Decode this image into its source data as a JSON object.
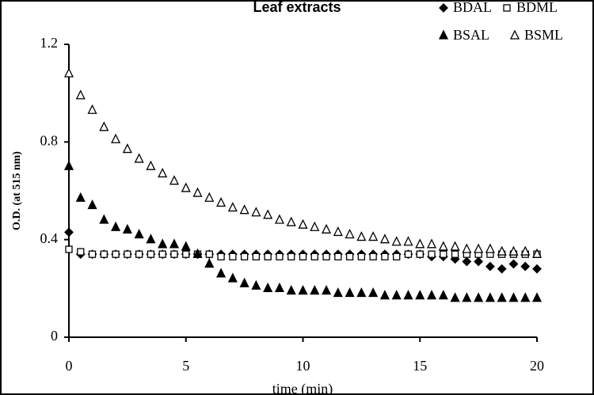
{
  "chart_data": {
    "type": "scatter",
    "title": "Leaf extracts",
    "xlabel": "time (min)",
    "ylabel": "O.D. (at 515 nm)",
    "xlim": [
      0,
      20
    ],
    "ylim": [
      0,
      1.2
    ],
    "xticks": [
      0,
      5,
      10,
      15,
      20
    ],
    "yticks": [
      0,
      0.4,
      0.8,
      1.2
    ],
    "x": [
      0,
      0.5,
      1,
      1.5,
      2,
      2.5,
      3,
      3.5,
      4,
      4.5,
      5,
      5.5,
      6,
      6.5,
      7,
      7.5,
      8,
      8.5,
      9,
      9.5,
      10,
      10.5,
      11,
      11.5,
      12,
      12.5,
      13,
      13.5,
      14,
      14.5,
      15,
      15.5,
      16,
      16.5,
      17,
      17.5,
      18,
      18.5,
      19,
      19.5,
      20
    ],
    "series": [
      {
        "name": "BDAL",
        "color": "#000000",
        "marker": "diamond",
        "filled": true,
        "values": [
          0.43,
          0.34,
          0.34,
          0.34,
          0.34,
          0.34,
          0.34,
          0.34,
          0.34,
          0.34,
          0.34,
          0.34,
          0.34,
          0.34,
          0.34,
          0.34,
          0.34,
          0.34,
          0.34,
          0.34,
          0.34,
          0.34,
          0.34,
          0.34,
          0.34,
          0.34,
          0.34,
          0.34,
          0.34,
          0.34,
          0.34,
          0.33,
          0.33,
          0.32,
          0.31,
          0.31,
          0.29,
          0.28,
          0.3,
          0.29,
          0.28
        ]
      },
      {
        "name": "BDML",
        "color": "#000000",
        "marker": "square",
        "filled": false,
        "values": [
          0.36,
          0.35,
          0.34,
          0.34,
          0.34,
          0.34,
          0.34,
          0.34,
          0.34,
          0.34,
          0.34,
          0.34,
          0.34,
          0.33,
          0.33,
          0.33,
          0.33,
          0.33,
          0.33,
          0.33,
          0.33,
          0.33,
          0.33,
          0.33,
          0.33,
          0.33,
          0.33,
          0.33,
          0.33,
          0.34,
          0.34,
          0.34,
          0.34,
          0.34,
          0.34,
          0.34,
          0.34,
          0.34,
          0.34,
          0.34,
          0.34
        ]
      },
      {
        "name": "BSAL",
        "color": "#000000",
        "marker": "triangle",
        "filled": true,
        "values": [
          0.7,
          0.57,
          0.54,
          0.48,
          0.45,
          0.44,
          0.42,
          0.4,
          0.38,
          0.38,
          0.37,
          0.34,
          0.3,
          0.26,
          0.24,
          0.22,
          0.21,
          0.2,
          0.2,
          0.19,
          0.19,
          0.19,
          0.19,
          0.18,
          0.18,
          0.18,
          0.18,
          0.17,
          0.17,
          0.17,
          0.17,
          0.17,
          0.17,
          0.16,
          0.16,
          0.16,
          0.16,
          0.16,
          0.16,
          0.16,
          0.16
        ]
      },
      {
        "name": "BSML",
        "color": "#000000",
        "marker": "triangle",
        "filled": false,
        "values": [
          1.08,
          0.99,
          0.93,
          0.86,
          0.81,
          0.77,
          0.73,
          0.7,
          0.67,
          0.64,
          0.61,
          0.59,
          0.57,
          0.55,
          0.53,
          0.52,
          0.51,
          0.5,
          0.48,
          0.47,
          0.46,
          0.45,
          0.44,
          0.43,
          0.42,
          0.41,
          0.41,
          0.4,
          0.39,
          0.39,
          0.38,
          0.38,
          0.37,
          0.37,
          0.36,
          0.36,
          0.36,
          0.35,
          0.35,
          0.35,
          0.34
        ]
      }
    ]
  }
}
